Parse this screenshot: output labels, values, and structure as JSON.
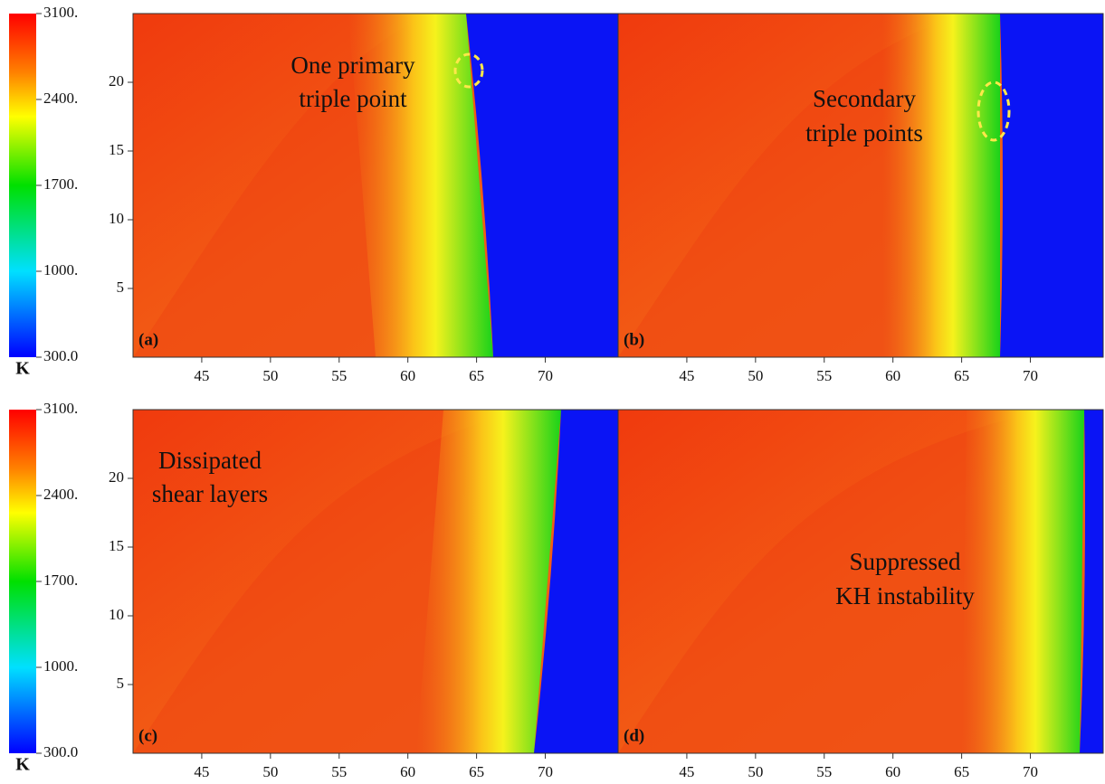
{
  "chart_data": [
    {
      "type": "heatmap",
      "panel_label": "(a)",
      "annotation": [
        "One primary",
        "triple point"
      ],
      "xlim": [
        40,
        75.3
      ],
      "ylim": [
        0,
        25
      ],
      "xticks": [
        45,
        50,
        55,
        60,
        65,
        70
      ],
      "yticks": [
        5,
        10,
        15,
        20
      ],
      "colorbar": {
        "label": "K",
        "lim": [
          300,
          3100
        ],
        "ticks": [
          {
            "value": 3100,
            "label": "3100."
          },
          {
            "value": 2400,
            "label": "2400."
          },
          {
            "value": 1700,
            "label": "1700."
          },
          {
            "value": 1000,
            "label": "1000."
          },
          {
            "value": 300,
            "label": "300.0"
          }
        ]
      }
    },
    {
      "type": "heatmap",
      "panel_label": "(b)",
      "annotation": [
        "Secondary",
        "triple points"
      ],
      "xlim": [
        40,
        75.3
      ],
      "ylim": [
        0,
        25
      ],
      "xticks": [
        45,
        50,
        55,
        60,
        65,
        70
      ]
    },
    {
      "type": "heatmap",
      "panel_label": "(c)",
      "annotation": [
        "Dissipated",
        "shear layers"
      ],
      "xlim": [
        40,
        75.3
      ],
      "ylim": [
        0,
        25
      ],
      "xticks": [
        45,
        50,
        55,
        60,
        65,
        70
      ],
      "yticks": [
        5,
        10,
        15,
        20
      ],
      "colorbar": {
        "label": "K",
        "lim": [
          300,
          3100
        ],
        "ticks": [
          {
            "value": 3100,
            "label": "3100."
          },
          {
            "value": 2400,
            "label": "2400."
          },
          {
            "value": 1700,
            "label": "1700."
          },
          {
            "value": 1000,
            "label": "1000."
          },
          {
            "value": 300,
            "label": "300.0"
          }
        ]
      }
    },
    {
      "type": "heatmap",
      "panel_label": "(d)",
      "annotation": [
        "Suppressed",
        "KH instability"
      ],
      "xlim": [
        40,
        75.3
      ],
      "ylim": [
        0,
        25
      ],
      "xticks": [
        45,
        50,
        55,
        60,
        65,
        70
      ]
    }
  ]
}
